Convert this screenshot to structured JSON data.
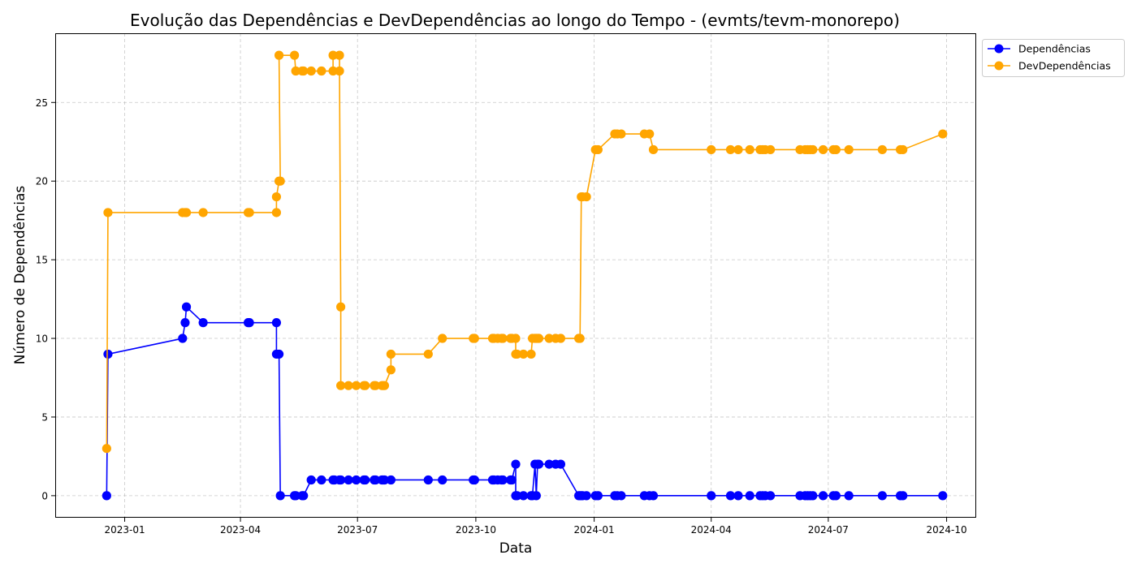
{
  "chart_data": {
    "type": "line",
    "title": "Evolução das Dependências e DevDependências ao longo do Tempo - (evmts/tevm-monorepo)",
    "xlabel": "Data",
    "ylabel": "Número de Dependências",
    "xlim": [
      "2022-11-08",
      "2024-10-24"
    ],
    "ylim": [
      -1.4,
      29.4
    ],
    "x_ticks": [
      "2023-01-01",
      "2023-04-01",
      "2023-07-01",
      "2023-10-01",
      "2024-01-01",
      "2024-04-01",
      "2024-07-01",
      "2024-10-01"
    ],
    "x_tick_labels": [
      "2023-01",
      "2023-04",
      "2023-07",
      "2023-10",
      "2024-01",
      "2024-04",
      "2024-07",
      "2024-10"
    ],
    "y_ticks": [
      0,
      5,
      10,
      15,
      20,
      25
    ],
    "grid": true,
    "legend_position": "outside top-right",
    "series": [
      {
        "name": "Dependências",
        "color": "#0000ff",
        "points": [
          [
            "2022-12-18",
            0
          ],
          [
            "2022-12-19",
            9
          ],
          [
            "2023-02-15",
            10
          ],
          [
            "2023-02-17",
            11
          ],
          [
            "2023-02-18",
            12
          ],
          [
            "2023-03-03",
            11
          ],
          [
            "2023-04-07",
            11
          ],
          [
            "2023-04-08",
            11
          ],
          [
            "2023-04-29",
            11
          ],
          [
            "2023-04-29",
            9
          ],
          [
            "2023-05-01",
            9
          ],
          [
            "2023-05-02",
            0
          ],
          [
            "2023-05-13",
            0
          ],
          [
            "2023-05-14",
            0
          ],
          [
            "2023-05-19",
            0
          ],
          [
            "2023-05-20",
            0
          ],
          [
            "2023-05-26",
            1
          ],
          [
            "2023-06-03",
            1
          ],
          [
            "2023-06-12",
            1
          ],
          [
            "2023-06-13",
            1
          ],
          [
            "2023-06-17",
            1
          ],
          [
            "2023-06-18",
            1
          ],
          [
            "2023-06-24",
            1
          ],
          [
            "2023-06-30",
            1
          ],
          [
            "2023-07-06",
            1
          ],
          [
            "2023-07-07",
            1
          ],
          [
            "2023-07-14",
            1
          ],
          [
            "2023-07-15",
            1
          ],
          [
            "2023-07-20",
            1
          ],
          [
            "2023-07-21",
            1
          ],
          [
            "2023-07-22",
            1
          ],
          [
            "2023-07-27",
            1
          ],
          [
            "2023-08-25",
            1
          ],
          [
            "2023-09-05",
            1
          ],
          [
            "2023-09-29",
            1
          ],
          [
            "2023-09-30",
            1
          ],
          [
            "2023-10-14",
            1
          ],
          [
            "2023-10-15",
            1
          ],
          [
            "2023-10-18",
            1
          ],
          [
            "2023-10-21",
            1
          ],
          [
            "2023-10-22",
            1
          ],
          [
            "2023-10-28",
            1
          ],
          [
            "2023-10-29",
            1
          ],
          [
            "2023-11-01",
            2
          ],
          [
            "2023-11-01",
            0
          ],
          [
            "2023-11-02",
            0
          ],
          [
            "2023-11-07",
            0
          ],
          [
            "2023-11-13",
            0
          ],
          [
            "2023-11-14",
            0
          ],
          [
            "2023-11-16",
            2
          ],
          [
            "2023-11-17",
            0
          ],
          [
            "2023-11-18",
            2
          ],
          [
            "2023-11-19",
            2
          ],
          [
            "2023-11-27",
            2
          ],
          [
            "2023-12-02",
            2
          ],
          [
            "2023-12-06",
            2
          ],
          [
            "2023-12-20",
            0
          ],
          [
            "2023-12-21",
            0
          ],
          [
            "2023-12-22",
            0
          ],
          [
            "2023-12-23",
            0
          ],
          [
            "2023-12-26",
            0
          ],
          [
            "2024-01-02",
            0
          ],
          [
            "2024-01-04",
            0
          ],
          [
            "2024-01-17",
            0
          ],
          [
            "2024-01-19",
            0
          ],
          [
            "2024-01-22",
            0
          ],
          [
            "2024-02-09",
            0
          ],
          [
            "2024-02-13",
            0
          ],
          [
            "2024-02-16",
            0
          ],
          [
            "2024-04-01",
            0
          ],
          [
            "2024-04-16",
            0
          ],
          [
            "2024-04-22",
            0
          ],
          [
            "2024-05-01",
            0
          ],
          [
            "2024-05-09",
            0
          ],
          [
            "2024-05-11",
            0
          ],
          [
            "2024-05-13",
            0
          ],
          [
            "2024-05-17",
            0
          ],
          [
            "2024-06-09",
            0
          ],
          [
            "2024-06-13",
            0
          ],
          [
            "2024-06-15",
            0
          ],
          [
            "2024-06-17",
            0
          ],
          [
            "2024-06-19",
            0
          ],
          [
            "2024-06-27",
            0
          ],
          [
            "2024-07-05",
            0
          ],
          [
            "2024-07-07",
            0
          ],
          [
            "2024-07-17",
            0
          ],
          [
            "2024-08-12",
            0
          ],
          [
            "2024-08-26",
            0
          ],
          [
            "2024-08-28",
            0
          ],
          [
            "2024-09-28",
            0
          ]
        ]
      },
      {
        "name": "DevDependências",
        "color": "#ffa500",
        "points": [
          [
            "2022-12-18",
            3
          ],
          [
            "2022-12-19",
            18
          ],
          [
            "2023-02-15",
            18
          ],
          [
            "2023-02-17",
            18
          ],
          [
            "2023-02-18",
            18
          ],
          [
            "2023-03-03",
            18
          ],
          [
            "2023-04-07",
            18
          ],
          [
            "2023-04-08",
            18
          ],
          [
            "2023-04-29",
            18
          ],
          [
            "2023-04-29",
            19
          ],
          [
            "2023-05-01",
            20
          ],
          [
            "2023-05-02",
            20
          ],
          [
            "2023-05-01",
            28
          ],
          [
            "2023-05-13",
            28
          ],
          [
            "2023-05-14",
            27
          ],
          [
            "2023-05-19",
            27
          ],
          [
            "2023-05-20",
            27
          ],
          [
            "2023-05-26",
            27
          ],
          [
            "2023-06-03",
            27
          ],
          [
            "2023-06-12",
            27
          ],
          [
            "2023-06-12",
            28
          ],
          [
            "2023-06-17",
            28
          ],
          [
            "2023-06-17",
            27
          ],
          [
            "2023-06-18",
            12
          ],
          [
            "2023-06-18",
            7
          ],
          [
            "2023-06-24",
            7
          ],
          [
            "2023-06-30",
            7
          ],
          [
            "2023-07-06",
            7
          ],
          [
            "2023-07-07",
            7
          ],
          [
            "2023-07-14",
            7
          ],
          [
            "2023-07-15",
            7
          ],
          [
            "2023-07-20",
            7
          ],
          [
            "2023-07-21",
            7
          ],
          [
            "2023-07-22",
            7
          ],
          [
            "2023-07-27",
            8
          ],
          [
            "2023-07-27",
            9
          ],
          [
            "2023-08-25",
            9
          ],
          [
            "2023-09-05",
            10
          ],
          [
            "2023-09-29",
            10
          ],
          [
            "2023-09-30",
            10
          ],
          [
            "2023-10-14",
            10
          ],
          [
            "2023-10-15",
            10
          ],
          [
            "2023-10-18",
            10
          ],
          [
            "2023-10-21",
            10
          ],
          [
            "2023-10-22",
            10
          ],
          [
            "2023-10-28",
            10
          ],
          [
            "2023-10-29",
            10
          ],
          [
            "2023-11-01",
            10
          ],
          [
            "2023-11-01",
            9
          ],
          [
            "2023-11-02",
            9
          ],
          [
            "2023-11-07",
            9
          ],
          [
            "2023-11-13",
            9
          ],
          [
            "2023-11-14",
            10
          ],
          [
            "2023-11-16",
            10
          ],
          [
            "2023-11-17",
            10
          ],
          [
            "2023-11-18",
            10
          ],
          [
            "2023-11-19",
            10
          ],
          [
            "2023-11-27",
            10
          ],
          [
            "2023-12-02",
            10
          ],
          [
            "2023-12-06",
            10
          ],
          [
            "2023-12-20",
            10
          ],
          [
            "2023-12-21",
            10
          ],
          [
            "2023-12-22",
            19
          ],
          [
            "2023-12-23",
            19
          ],
          [
            "2023-12-26",
            19
          ],
          [
            "2024-01-02",
            22
          ],
          [
            "2024-01-04",
            22
          ],
          [
            "2024-01-17",
            23
          ],
          [
            "2024-01-19",
            23
          ],
          [
            "2024-01-22",
            23
          ],
          [
            "2024-02-09",
            23
          ],
          [
            "2024-02-13",
            23
          ],
          [
            "2024-02-16",
            22
          ],
          [
            "2024-04-01",
            22
          ],
          [
            "2024-04-16",
            22
          ],
          [
            "2024-04-22",
            22
          ],
          [
            "2024-05-01",
            22
          ],
          [
            "2024-05-09",
            22
          ],
          [
            "2024-05-11",
            22
          ],
          [
            "2024-05-13",
            22
          ],
          [
            "2024-05-17",
            22
          ],
          [
            "2024-06-09",
            22
          ],
          [
            "2024-06-13",
            22
          ],
          [
            "2024-06-15",
            22
          ],
          [
            "2024-06-17",
            22
          ],
          [
            "2024-06-19",
            22
          ],
          [
            "2024-06-27",
            22
          ],
          [
            "2024-07-05",
            22
          ],
          [
            "2024-07-07",
            22
          ],
          [
            "2024-07-17",
            22
          ],
          [
            "2024-08-12",
            22
          ],
          [
            "2024-08-26",
            22
          ],
          [
            "2024-08-28",
            22
          ],
          [
            "2024-09-28",
            23
          ]
        ]
      }
    ]
  }
}
